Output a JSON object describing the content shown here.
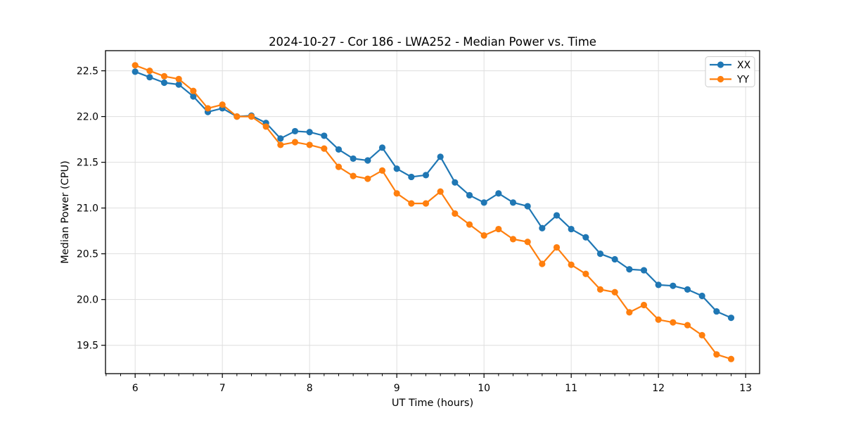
{
  "chart_data": {
    "type": "line",
    "title": "2024-10-27 - Cor 186 - LWA252 - Median Power vs. Time",
    "xlabel": "UT Time (hours)",
    "ylabel": "Median Power (CPU)",
    "x": [
      6.0,
      6.1667,
      6.3333,
      6.5,
      6.6667,
      6.8333,
      7.0,
      7.1667,
      7.3333,
      7.5,
      7.6667,
      7.8333,
      8.0,
      8.1667,
      8.3333,
      8.5,
      8.6667,
      8.8333,
      9.0,
      9.1667,
      9.3333,
      9.5,
      9.6667,
      9.8333,
      10.0,
      10.1667,
      10.3333,
      10.5,
      10.6667,
      10.8333,
      11.0,
      11.1667,
      11.3333,
      11.5,
      11.6667,
      11.8333,
      12.0,
      12.1667,
      12.3333,
      12.5,
      12.6667,
      12.8333
    ],
    "series": [
      {
        "name": "XX",
        "color": "#1f77b4",
        "values": [
          22.49,
          22.43,
          22.37,
          22.35,
          22.22,
          22.05,
          22.09,
          22.0,
          22.01,
          21.93,
          21.76,
          21.84,
          21.83,
          21.79,
          21.64,
          21.54,
          21.52,
          21.66,
          21.43,
          21.34,
          21.36,
          21.56,
          21.28,
          21.14,
          21.06,
          21.16,
          21.06,
          21.02,
          20.78,
          20.92,
          20.77,
          20.68,
          20.5,
          20.44,
          20.33,
          20.32,
          20.16,
          20.15,
          20.11,
          20.04,
          19.87,
          19.8
        ]
      },
      {
        "name": "YY",
        "color": "#ff7f0e",
        "values": [
          22.56,
          22.5,
          22.44,
          22.41,
          22.28,
          22.09,
          22.13,
          22.0,
          22.0,
          21.89,
          21.69,
          21.72,
          21.69,
          21.65,
          21.45,
          21.35,
          21.32,
          21.41,
          21.16,
          21.05,
          21.05,
          21.18,
          20.94,
          20.82,
          20.7,
          20.77,
          20.66,
          20.63,
          20.39,
          20.57,
          20.38,
          20.28,
          20.11,
          20.08,
          19.86,
          19.94,
          19.78,
          19.75,
          19.72,
          19.61,
          19.4,
          19.35
        ]
      }
    ],
    "xlim": [
      5.66,
      13.16
    ],
    "ylim": [
      19.19,
      22.72
    ],
    "x_ticks": [
      6,
      7,
      8,
      9,
      10,
      11,
      12,
      13
    ],
    "x_tick_labels": [
      "6",
      "7",
      "8",
      "9",
      "10",
      "11",
      "12",
      "13"
    ],
    "y_ticks": [
      19.5,
      20.0,
      20.5,
      21.0,
      21.5,
      22.0,
      22.5
    ],
    "y_tick_labels": [
      "19.5",
      "20.0",
      "20.5",
      "21.0",
      "21.5",
      "22.0",
      "22.5"
    ],
    "x_minor_step": 0.166667,
    "grid": true,
    "grid_color": "#dedede",
    "legend_position": "upper right",
    "marker": "o",
    "legend": [
      "XX",
      "YY"
    ]
  }
}
